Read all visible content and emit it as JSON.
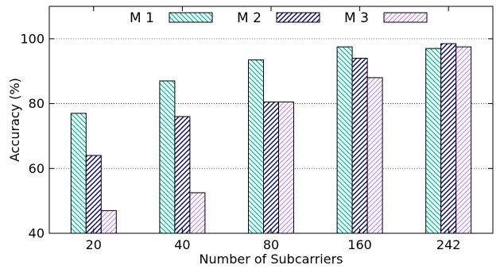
{
  "chart_data": {
    "type": "bar",
    "categories": [
      "20",
      "40",
      "80",
      "160",
      "242"
    ],
    "series": [
      {
        "name": "M 1",
        "values": [
          77,
          87,
          93.5,
          97.5,
          97
        ],
        "pattern": "diag-left",
        "color": "#1a9a8a",
        "fill": "#e6faf6"
      },
      {
        "name": "M 2",
        "values": [
          64,
          76,
          80.5,
          94,
          98.5
        ],
        "pattern": "diag-right",
        "color": "#00007a",
        "fill": "#ffffff"
      },
      {
        "name": "M 3",
        "values": [
          47,
          52.5,
          80.5,
          88,
          97.5
        ],
        "pattern": "diag-right-light",
        "color": "#b07acb",
        "fill": "#fdf3ff"
      }
    ],
    "xlabel": "Number of Subcarriers",
    "ylabel": "Accuracy (%)",
    "ylim": [
      40,
      110
    ],
    "yticks": [
      40,
      60,
      80,
      100
    ],
    "grid": "y-dotted",
    "legend": "top"
  }
}
